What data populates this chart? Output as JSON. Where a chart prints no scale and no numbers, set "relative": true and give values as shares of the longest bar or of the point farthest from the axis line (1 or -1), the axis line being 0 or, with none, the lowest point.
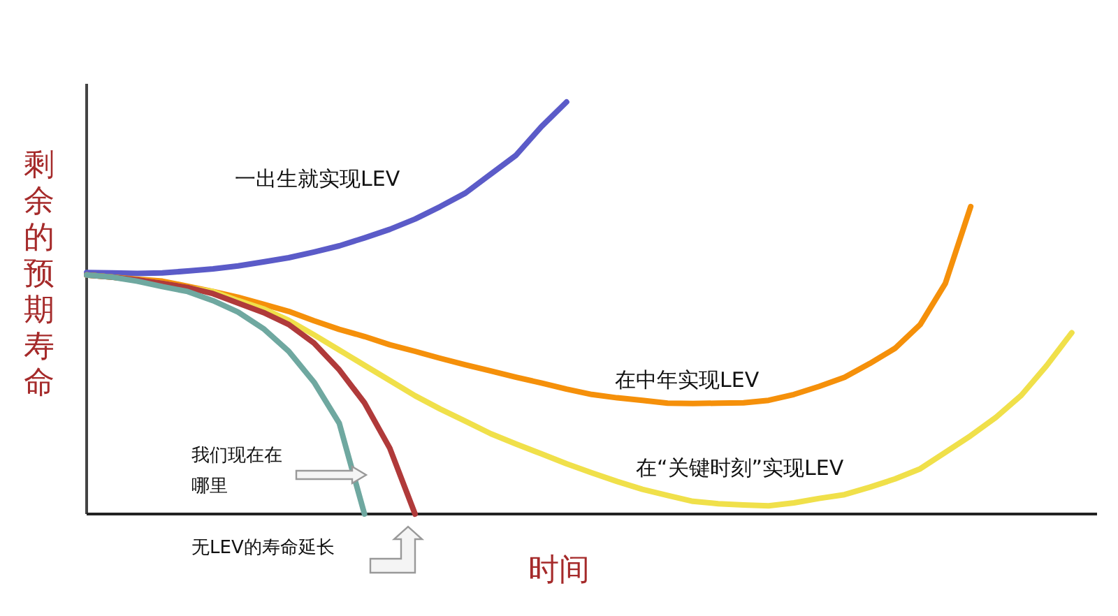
{
  "chart_data": {
    "type": "line",
    "relative": true,
    "xlabel": "时间",
    "ylabel": "剩余的预期寿命",
    "legend": false,
    "annotations": [
      "我们现在在哪里",
      "无LEV的寿命延长"
    ],
    "line_style": "solid",
    "categories": [
      null,
      null,
      null,
      null,
      null,
      null,
      null,
      null,
      null,
      null,
      null,
      null,
      null,
      null,
      null,
      null,
      null,
      null,
      null,
      null,
      null,
      null,
      null,
      null,
      null,
      null,
      null,
      null,
      null,
      null,
      null,
      null,
      null,
      null,
      null,
      null,
      null,
      null,
      null,
      null,
      null
    ],
    "series": [
      {
        "name": "一出生就实现LEV",
        "color": "#5b5bc8",
        "values": [
          0.586,
          0.585,
          0.584,
          0.585,
          0.59,
          0.595,
          0.602,
          0.612,
          0.622,
          0.636,
          0.651,
          0.67,
          0.691,
          0.716,
          0.746,
          0.779,
          0.825,
          0.871,
          0.94,
          1.0,
          null,
          null,
          null,
          null,
          null,
          null,
          null,
          null,
          null,
          null,
          null,
          null,
          null,
          null,
          null,
          null,
          null,
          null,
          null,
          null,
          null
        ]
      },
      {
        "name": "在中年实现LEV",
        "color": "#f5900a",
        "values": [
          0.58,
          0.575,
          0.57,
          0.565,
          0.553,
          0.54,
          0.526,
          0.509,
          0.492,
          0.469,
          0.448,
          0.431,
          0.411,
          0.395,
          0.378,
          0.362,
          0.347,
          0.332,
          0.318,
          0.303,
          0.29,
          0.282,
          0.276,
          0.269,
          0.268,
          0.269,
          0.27,
          0.276,
          0.29,
          0.31,
          0.332,
          0.365,
          0.402,
          0.46,
          0.56,
          0.746,
          null,
          null,
          null,
          null,
          null
        ]
      },
      {
        "name": "在“关键时刻”实现LEV",
        "color": "#f0e04a",
        "values": [
          0.58,
          0.575,
          0.568,
          0.56,
          0.549,
          0.54,
          0.518,
          0.498,
          0.47,
          0.435,
          0.398,
          0.361,
          0.324,
          0.287,
          0.255,
          0.225,
          0.195,
          0.17,
          0.146,
          0.122,
          0.1,
          0.079,
          0.06,
          0.045,
          0.031,
          0.025,
          0.022,
          0.02,
          0.027,
          0.038,
          0.047,
          0.065,
          0.085,
          0.11,
          0.15,
          0.19,
          0.235,
          0.288,
          0.36,
          0.44,
          null
        ]
      },
      {
        "color": "#b03a3a",
        "values": [
          0.58,
          0.575,
          0.568,
          0.56,
          0.55,
          0.535,
          0.512,
          0.489,
          0.46,
          0.415,
          0.35,
          0.27,
          0.16,
          0,
          null,
          null,
          null,
          null,
          null,
          null,
          null,
          null,
          null,
          null,
          null,
          null,
          null,
          null,
          null,
          null,
          null,
          null,
          null,
          null,
          null,
          null,
          null,
          null,
          null,
          null,
          null
        ]
      },
      {
        "color": "#6fa8a0",
        "values": [
          0.58,
          0.575,
          0.565,
          0.552,
          0.54,
          0.518,
          0.49,
          0.45,
          0.395,
          0.32,
          0.22,
          0,
          null,
          null,
          null,
          null,
          null,
          null,
          null,
          null,
          null,
          null,
          null,
          null,
          null,
          null,
          null,
          null,
          null,
          null,
          null,
          null,
          null,
          null,
          null,
          null,
          null,
          null,
          null,
          null,
          null
        ]
      }
    ]
  }
}
